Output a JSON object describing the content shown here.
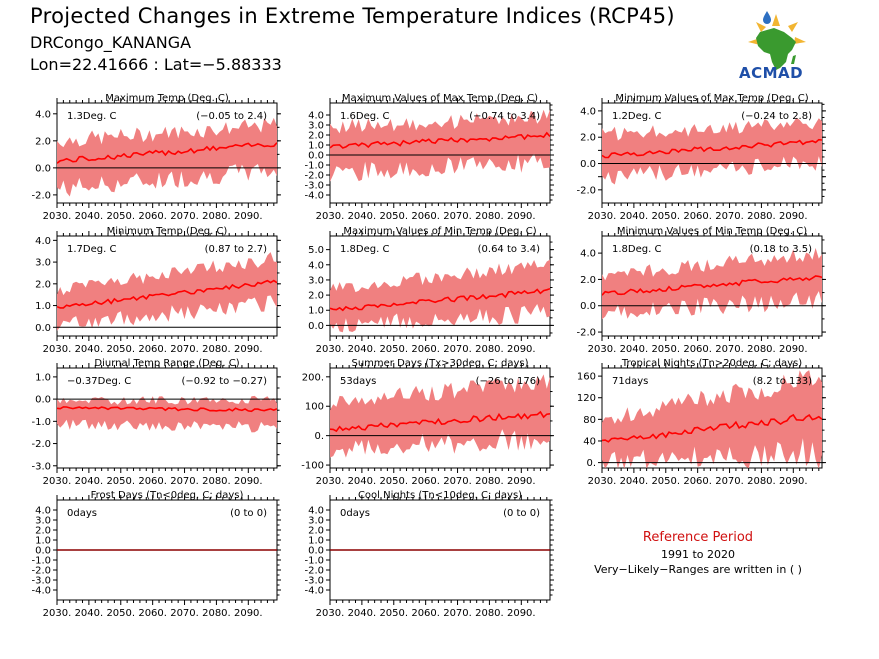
{
  "header": {
    "title": "Projected Changes in Extreme Temperature Indices (RCP45)",
    "location": "DRCongo_KANANGA",
    "coords": "Lon=22.41666 : Lat=−5.88333"
  },
  "logo": {
    "text": "ACMAD"
  },
  "reference": {
    "title": "Reference Period",
    "years": "1991 to 2020",
    "note": "Very−Likely−Ranges are written in ( )"
  },
  "colors": {
    "band": "#f08080",
    "median": "#ff0000",
    "zero_line": "#000000",
    "flat_line": "#8b0000"
  },
  "chart_data": [
    {
      "id": "txm",
      "type": "area",
      "title": "Maximum Temp (Deg. C)",
      "stat": "1.3Deg. C",
      "range": "(−0.05 to 2.4)",
      "ylim": [
        -2.6,
        4.8
      ],
      "yticks": [
        -2.0,
        0.0,
        2.0,
        4.0
      ],
      "yticklabels": [
        "-2.0",
        "0.0",
        "2.0",
        "4.0"
      ],
      "x_start": 2030,
      "x_end": 2099,
      "xticks": [
        2030,
        2040,
        2050,
        2060,
        2070,
        2080,
        2090
      ],
      "xticklabels": [
        "2030.",
        "2040.",
        "2050.",
        "2060.",
        "2070.",
        "2080.",
        "2090."
      ],
      "median_start": 0.5,
      "median_end": 1.8,
      "low_start": -1.4,
      "low_end": 0.0,
      "high_start": 2.0,
      "high_end": 3.2,
      "flat": false
    },
    {
      "id": "txx",
      "type": "area",
      "title": "Maximum Values of Max Temp (Deg. C)",
      "stat": "1.6Deg. C",
      "range": "(−0.74 to 3.4)",
      "ylim": [
        -4.8,
        5.2
      ],
      "yticks": [
        -4.0,
        -3.0,
        -2.0,
        -1.0,
        0.0,
        1.0,
        2.0,
        3.0,
        4.0
      ],
      "yticklabels": [
        "-4.0",
        "-3.0",
        "-2.0",
        "-1.0",
        "0.0",
        "1.0",
        "2.0",
        "3.0",
        "4.0"
      ],
      "x_start": 2030,
      "x_end": 2099,
      "xticks": [
        2030,
        2040,
        2050,
        2060,
        2070,
        2080,
        2090
      ],
      "xticklabels": [
        "2030.",
        "2040.",
        "2050.",
        "2060.",
        "2070.",
        "2080.",
        "2090."
      ],
      "median_start": 0.8,
      "median_end": 2.0,
      "low_start": -1.6,
      "low_end": -0.5,
      "high_start": 2.8,
      "high_end": 3.8,
      "flat": false
    },
    {
      "id": "txn",
      "type": "area",
      "title": "Minimum Values of Max Temp (Deg. C)",
      "stat": "1.2Deg. C",
      "range": "(−0.24 to 2.8)",
      "ylim": [
        -3.0,
        4.6
      ],
      "yticks": [
        -2.0,
        -1.0,
        0.0,
        1.0,
        2.0,
        3.0,
        4.0
      ],
      "yticklabels": [
        "-2.0",
        "",
        "0.0",
        "",
        "2.0",
        "",
        "4.0"
      ],
      "x_start": 2030,
      "x_end": 2099,
      "xticks": [
        2030,
        2040,
        2050,
        2060,
        2070,
        2080,
        2090
      ],
      "xticklabels": [
        "2030.",
        "2040.",
        "2050.",
        "2060.",
        "2070.",
        "2080.",
        "2090."
      ],
      "median_start": 0.6,
      "median_end": 1.7,
      "low_start": -0.9,
      "low_end": 0.2,
      "high_start": 2.2,
      "high_end": 3.1,
      "flat": false
    },
    {
      "id": "tnm",
      "type": "area",
      "title": "Minimum Temp (Deg. C)",
      "stat": "1.7Deg. C",
      "range": "(0.87 to 2.7)",
      "ylim": [
        -0.4,
        4.2
      ],
      "yticks": [
        0.0,
        1.0,
        2.0,
        3.0,
        4.0
      ],
      "yticklabels": [
        "0.0",
        "1.0",
        "2.0",
        "3.0",
        "4.0"
      ],
      "x_start": 2030,
      "x_end": 2099,
      "xticks": [
        2030,
        2040,
        2050,
        2060,
        2070,
        2080,
        2090
      ],
      "xticklabels": [
        "2030.",
        "2040.",
        "2050.",
        "2060.",
        "2070.",
        "2080.",
        "2090."
      ],
      "median_start": 0.9,
      "median_end": 2.1,
      "low_start": 0.2,
      "low_end": 1.2,
      "high_start": 1.7,
      "high_end": 3.2,
      "flat": false
    },
    {
      "id": "tnx",
      "type": "area",
      "title": "Maximum Values of Min Temp (Deg. C)",
      "stat": "1.8Deg. C",
      "range": "(0.64 to 3.4)",
      "ylim": [
        -0.7,
        5.9
      ],
      "yticks": [
        0.0,
        1.0,
        2.0,
        3.0,
        4.0,
        5.0
      ],
      "yticklabels": [
        "0.0",
        "1.0",
        "2.0",
        "3.0",
        "4.0",
        "5.0"
      ],
      "x_start": 2030,
      "x_end": 2099,
      "xticks": [
        2030,
        2040,
        2050,
        2060,
        2070,
        2080,
        2090
      ],
      "xticklabels": [
        "2030.",
        "2040.",
        "2050.",
        "2060.",
        "2070.",
        "2080.",
        "2090."
      ],
      "median_start": 1.0,
      "median_end": 2.3,
      "low_start": 0.1,
      "low_end": 1.0,
      "high_start": 2.4,
      "high_end": 4.0,
      "flat": false
    },
    {
      "id": "tnn",
      "type": "area",
      "title": "Minimum Values of Min Temp (Deg. C)",
      "stat": "1.8Deg. C",
      "range": "(0.18 to 3.5)",
      "ylim": [
        -2.3,
        5.3
      ],
      "yticks": [
        -2.0,
        0.0,
        2.0,
        4.0
      ],
      "yticklabels": [
        "-2.0",
        "0.0",
        "2.0",
        "4.0"
      ],
      "x_start": 2030,
      "x_end": 2099,
      "xticks": [
        2030,
        2040,
        2050,
        2060,
        2070,
        2080,
        2090
      ],
      "xticklabels": [
        "2030.",
        "2040.",
        "2050.",
        "2060.",
        "2070.",
        "2080.",
        "2090."
      ],
      "median_start": 0.9,
      "median_end": 2.2,
      "low_start": -0.4,
      "low_end": 0.6,
      "high_start": 2.3,
      "high_end": 4.0,
      "flat": false
    },
    {
      "id": "dtr",
      "type": "area",
      "title": "Diurnal Temp Range (Deg. C)",
      "stat": "−0.37Deg. C",
      "range": "(−0.92 to −0.27)",
      "ylim": [
        -3.1,
        1.4
      ],
      "yticks": [
        -3.0,
        -2.0,
        -1.0,
        0.0,
        1.0
      ],
      "yticklabels": [
        "-3.0",
        "-2.0",
        "-1.0",
        "0.0",
        "1.0"
      ],
      "x_start": 2030,
      "x_end": 2099,
      "xticks": [
        2030,
        2040,
        2050,
        2060,
        2070,
        2080,
        2090
      ],
      "xticklabels": [
        "2030.",
        "2040.",
        "2050.",
        "2060.",
        "2070.",
        "2080.",
        "2090."
      ],
      "median_start": -0.4,
      "median_end": -0.5,
      "low_start": -1.1,
      "low_end": -1.2,
      "high_start": -0.1,
      "high_end": 0.0,
      "flat": false
    },
    {
      "id": "su",
      "type": "area",
      "title": "Summer Days (Tx>30deg. C; days)",
      "stat": "53days",
      "range": "(−26 to 176)",
      "ylim": [
        -110,
        230
      ],
      "yticks": [
        -100,
        0,
        100,
        200
      ],
      "yticklabels": [
        "-100",
        "0.",
        "100",
        "200."
      ],
      "x_start": 2030,
      "x_end": 2099,
      "xticks": [
        2030,
        2040,
        2050,
        2060,
        2070,
        2080,
        2090
      ],
      "xticklabels": [
        "2030.",
        "2040.",
        "2050.",
        "2060.",
        "2070.",
        "2080.",
        "2090."
      ],
      "median_start": 20,
      "median_end": 75,
      "low_start": -40,
      "low_end": 0,
      "high_start": 110,
      "high_end": 190,
      "flat": false
    },
    {
      "id": "tr",
      "type": "area",
      "title": "Tropical Nights (Tn>20deg. C; days)",
      "stat": "71days",
      "range": "(8.2 to 133)",
      "ylim": [
        -10,
        175
      ],
      "yticks": [
        0,
        40,
        80,
        120,
        160
      ],
      "yticklabels": [
        "0.",
        "40",
        "80",
        "120",
        "160"
      ],
      "x_start": 2030,
      "x_end": 2099,
      "xticks": [
        2030,
        2040,
        2050,
        2060,
        2070,
        2080,
        2090
      ],
      "xticklabels": [
        "2030.",
        "2040.",
        "2050.",
        "2060.",
        "2070.",
        "2080.",
        "2090."
      ],
      "median_start": 38,
      "median_end": 88,
      "low_start": 5,
      "low_end": 25,
      "high_start": 80,
      "high_end": 160,
      "flat": false
    },
    {
      "id": "fd",
      "type": "line",
      "title": "Frost Days (Tn<0deg. C; days)",
      "stat": "0days",
      "range": "(0 to 0)",
      "ylim": [
        -5.0,
        5.0
      ],
      "yticks": [
        -4.0,
        -3.0,
        -2.0,
        -1.0,
        0.0,
        1.0,
        2.0,
        3.0,
        4.0
      ],
      "yticklabels": [
        "-4.0",
        "-3.0",
        "-2.0",
        "-1.0",
        "0.0",
        "1.0",
        "2.0",
        "3.0",
        "4.0"
      ],
      "x_start": 2030,
      "x_end": 2099,
      "xticks": [
        2030,
        2040,
        2050,
        2060,
        2070,
        2080,
        2090
      ],
      "xticklabels": [
        "2030.",
        "2040.",
        "2050.",
        "2060.",
        "2070.",
        "2080.",
        "2090."
      ],
      "median_start": 0,
      "median_end": 0,
      "low_start": 0,
      "low_end": 0,
      "high_start": 0,
      "high_end": 0,
      "flat": true
    },
    {
      "id": "tn10",
      "type": "line",
      "title": "Cool Nights (Tn<10deg. C; days)",
      "stat": "0days",
      "range": "(0 to 0)",
      "ylim": [
        -5.0,
        5.0
      ],
      "yticks": [
        -4.0,
        -3.0,
        -2.0,
        -1.0,
        0.0,
        1.0,
        2.0,
        3.0,
        4.0
      ],
      "yticklabels": [
        "-4.0",
        "-3.0",
        "-2.0",
        "-1.0",
        "0.0",
        "1.0",
        "2.0",
        "3.0",
        "4.0"
      ],
      "x_start": 2030,
      "x_end": 2099,
      "xticks": [
        2030,
        2040,
        2050,
        2060,
        2070,
        2080,
        2090
      ],
      "xticklabels": [
        "2030.",
        "2040.",
        "2050.",
        "2060.",
        "2070.",
        "2080.",
        "2090."
      ],
      "median_start": 0,
      "median_end": 0,
      "low_start": 0,
      "low_end": 0,
      "high_start": 0,
      "high_end": 0,
      "flat": true
    }
  ]
}
